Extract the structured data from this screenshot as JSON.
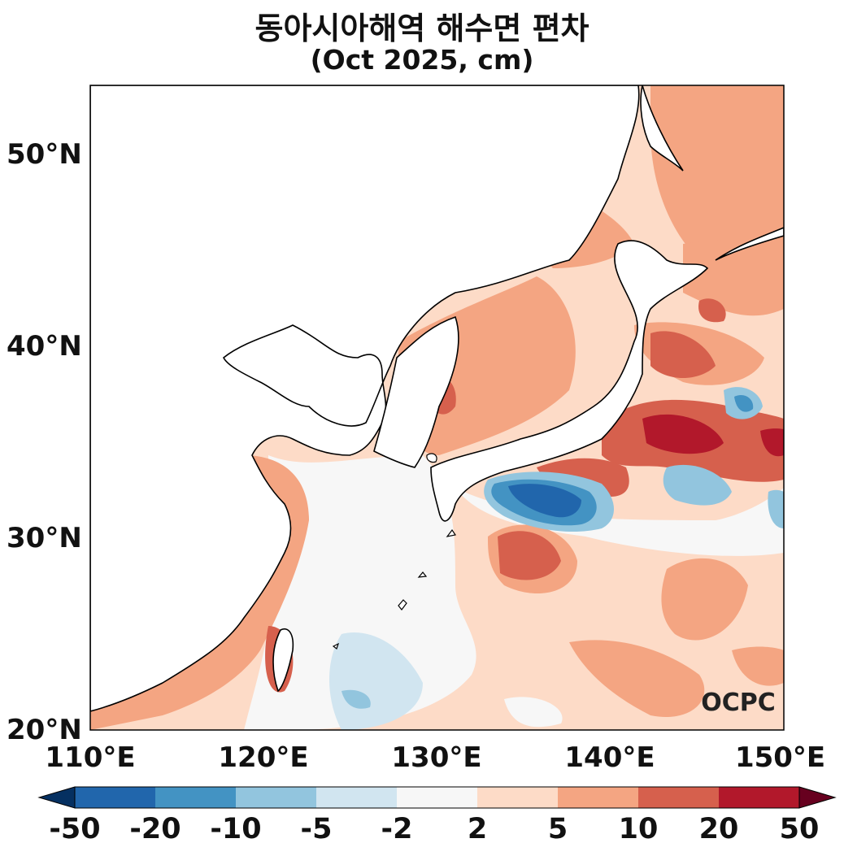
{
  "title": "동아시아해역 해수면 편차",
  "subtitle": "(Oct 2025, cm)",
  "watermark": "OCPC",
  "lat_labels": [
    "50°N",
    "40°N",
    "30°N",
    "20°N"
  ],
  "lon_labels": [
    "110°E",
    "120°E",
    "130°E",
    "140°E",
    "150°E"
  ],
  "colorbar": {
    "ticks": [
      "-50",
      "-20",
      "-10",
      "-5",
      "-2",
      "2",
      "5",
      "10",
      "20",
      "50"
    ],
    "colors": [
      "#053061",
      "#2166ac",
      "#4393c3",
      "#92c5de",
      "#d1e5f0",
      "#f7f7f7",
      "#fddbc7",
      "#f4a582",
      "#d6604d",
      "#b2182b",
      "#67001f"
    ]
  },
  "map_extent": {
    "lon": [
      110,
      150
    ],
    "lat": [
      20,
      53.5
    ]
  }
}
